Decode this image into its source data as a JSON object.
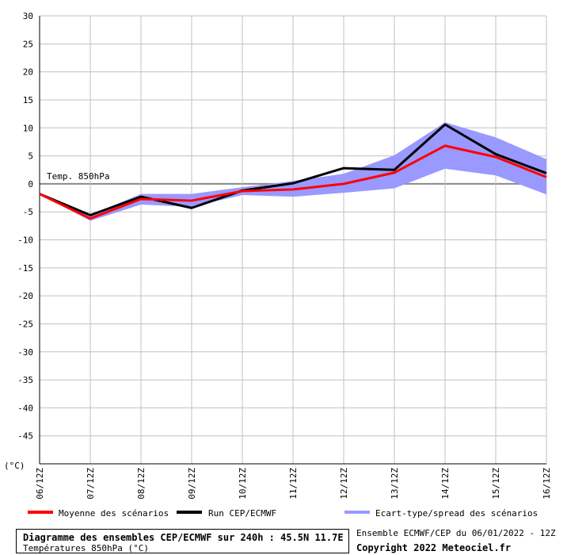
{
  "chart_data": {
    "type": "line",
    "y_unit": "(°C)",
    "ylim": [
      -50,
      30
    ],
    "yticks": [
      30,
      25,
      20,
      15,
      10,
      5,
      0,
      -5,
      -10,
      -15,
      -20,
      -25,
      -30,
      -35,
      -40,
      -45
    ],
    "x": [
      "06/12Z",
      "07/12Z",
      "08/12Z",
      "09/12Z",
      "10/12Z",
      "11/12Z",
      "12/12Z",
      "13/12Z",
      "14/12Z",
      "15/12Z",
      "16/12Z"
    ],
    "grid": true,
    "reference_line_label": "Temp. 850hPa",
    "series": [
      {
        "name": "Moyenne des scénarios",
        "color": "#ff0000",
        "values": [
          -1.8,
          -6.2,
          -2.7,
          -3.0,
          -1.3,
          -1.0,
          0.0,
          2.0,
          6.8,
          4.8,
          1.2
        ]
      },
      {
        "name": "Run CEP/ECMWF",
        "color": "#000000",
        "values": [
          -1.8,
          -5.6,
          -2.3,
          -4.3,
          -1.2,
          0.1,
          2.8,
          2.5,
          10.6,
          5.3,
          1.9
        ]
      }
    ],
    "spread": {
      "name": "Ecart-type/spread des scénarios",
      "color": "#9999ff",
      "upper": [
        -1.8,
        -5.6,
        -1.8,
        -1.8,
        -0.6,
        0.5,
        1.8,
        5.1,
        11.0,
        8.3,
        4.4
      ],
      "lower": [
        -1.8,
        -6.6,
        -3.7,
        -4.1,
        -2.0,
        -2.3,
        -1.6,
        -0.8,
        2.7,
        1.5,
        -1.9
      ]
    }
  },
  "footer": {
    "title": "Diagramme des ensembles CEP/ECMWF sur 240h : 45.5N 11.7E",
    "subtitle": "Températures 850hPa (°C)",
    "ensemble": "Ensemble ECMWF/CEP du 06/01/2022 - 12Z",
    "copyright": "Copyright 2022 Meteociel.fr"
  }
}
